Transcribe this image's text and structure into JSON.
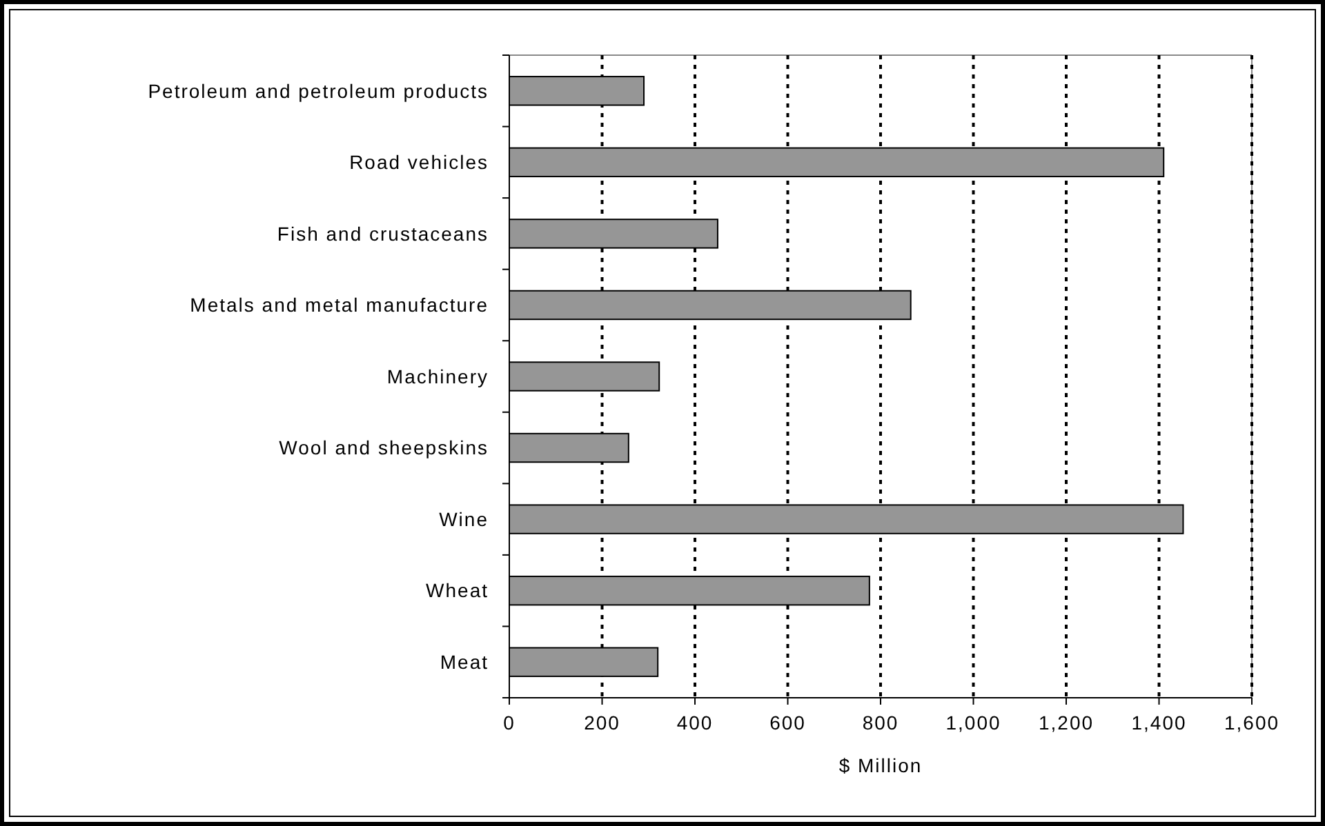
{
  "chart_data": {
    "type": "bar",
    "orientation": "horizontal",
    "categories": [
      "Petroleum and petroleum products",
      "Road vehicles",
      "Fish and crustaceans",
      "Metals and metal manufacture",
      "Machinery",
      "Wool and sheepskins",
      "Wine",
      "Wheat",
      "Meat"
    ],
    "values": [
      290,
      1410,
      449,
      865,
      323,
      257,
      1452,
      776,
      320
    ],
    "color": "#969696",
    "xlabel": "$ Million",
    "xlim": [
      0,
      1600
    ],
    "xticks": [
      0,
      200,
      400,
      600,
      800,
      {
        "value": 1000,
        "label": "1,000"
      },
      {
        "value": 1200,
        "label": "1,200"
      },
      {
        "value": 1400,
        "label": "1,400"
      },
      {
        "value": 1600,
        "label": "1,600"
      }
    ],
    "grid": "x",
    "line_style": "dotted"
  }
}
